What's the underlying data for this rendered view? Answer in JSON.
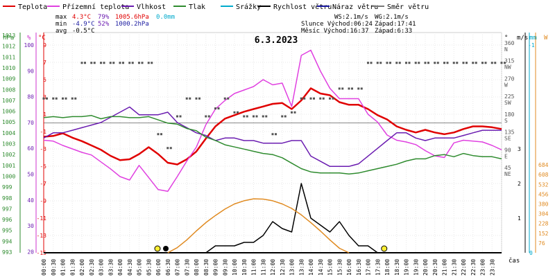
{
  "chart_data": {
    "type": "line",
    "title": "6.3.2023",
    "legend": [
      {
        "label": "Teplota",
        "color": "#e00000"
      },
      {
        "label": "Přízemní teplota",
        "color": "#e040e0"
      },
      {
        "label": "Vlhkost",
        "color": "#6a1bb0"
      },
      {
        "label": "Tlak",
        "color": "#2e8b2e"
      },
      {
        "label": "Srážky",
        "color": "#00aacc"
      },
      {
        "label": "Rychlost větru",
        "color": "#000000"
      },
      {
        "label": "Náraz větru",
        "color": "#1a1aa0"
      },
      {
        "label": "Směr větru",
        "color": "#777777"
      }
    ],
    "stats": {
      "max_label": "max",
      "max_temp": "4.3°C",
      "max_hum": "79%",
      "max_press": "1005.6hPa",
      "max_rain": "0.0mm",
      "min_label": "min",
      "min_temp": "-4.9°C",
      "min_hum": "52%",
      "min_press": "1000.2hPa",
      "avg_label": "avg",
      "avg_temp": "-0.5°C"
    },
    "info": {
      "ws": "WS:2.1m/s",
      "wg": "WG:2.1m/s",
      "sun_rise": "Slunce Východ:06:24",
      "sun_set": "Západ:17:41",
      "moon_rise": "Měsíc  Východ:16:37",
      "moon_set": "Západ:6:33"
    },
    "axes": {
      "hpa_unit": "hPa",
      "hum_unit": "%",
      "temp_unit": "°C",
      "dir_unit": "°",
      "wind_unit": "m/s",
      "rain_unit": "mm",
      "solar_unit": "W",
      "hpa_ticks": [
        "1013",
        "1012",
        "1011",
        "1010",
        "1009",
        "1008",
        "1007",
        "1006",
        "1005",
        "1004",
        "1003",
        "1002",
        "1001",
        "1000",
        "999",
        "998",
        "997",
        "996",
        "995",
        "994",
        "993"
      ],
      "hum_ticks": [
        "100",
        "90",
        "80",
        "70",
        "60",
        "50",
        "40",
        "30",
        "20"
      ],
      "temp_ticks": [
        "9",
        "7",
        "5",
        "3",
        "1",
        "-1",
        "-3",
        "-5",
        "-7",
        "-9",
        "-11",
        "-13",
        "-15"
      ],
      "dir_ticks": [
        {
          "deg": "360",
          "lbl": "N"
        },
        {
          "deg": "315",
          "lbl": "NW"
        },
        {
          "deg": "270",
          "lbl": "W"
        },
        {
          "deg": "225",
          "lbl": "SW"
        },
        {
          "deg": "180",
          "lbl": "S"
        },
        {
          "deg": "135",
          "lbl": "SE"
        },
        {
          "deg": "90",
          "lbl": "E"
        },
        {
          "deg": "45",
          "lbl": "NE"
        }
      ],
      "wind_ticks": [
        "3",
        "2",
        "1"
      ],
      "rain_ticks": [
        "-1",
        "0"
      ],
      "solar_ticks": [
        "684",
        "608",
        "532",
        "456",
        "380",
        "304",
        "228",
        "152",
        "76"
      ],
      "time_ticks": [
        "00:00",
        "00:30",
        "01:00",
        "01:30",
        "02:00",
        "02:30",
        "03:00",
        "03:30",
        "04:00",
        "04:30",
        "05:00",
        "05:30",
        "06:00",
        "06:30",
        "07:00",
        "07:30",
        "08:00",
        "08:30",
        "09:00",
        "09:30",
        "10:00",
        "10:30",
        "11:00",
        "11:30",
        "12:00",
        "12:30",
        "13:00",
        "13:30",
        "14:00",
        "14:30",
        "15:00",
        "15:30",
        "16:00",
        "16:30",
        "17:00",
        "17:30",
        "18:00",
        "18:30",
        "19:00",
        "19:30",
        "20:00",
        "20:30",
        "21:00",
        "21:30",
        "22:00",
        "22:30",
        "23:00",
        "23:30"
      ],
      "time_label": "čas",
      "zero_line_temp": 0
    },
    "x_hours": [
      0,
      0.5,
      1,
      1.5,
      2,
      2.5,
      3,
      3.5,
      4,
      4.5,
      5,
      5.5,
      6,
      6.5,
      7,
      7.5,
      8,
      8.5,
      9,
      9.5,
      10,
      10.5,
      11,
      11.5,
      12,
      12.5,
      13,
      13.5,
      14,
      14.5,
      15,
      15.5,
      16,
      16.5,
      17,
      17.5,
      18,
      18.5,
      19,
      19.5,
      20,
      20.5,
      21,
      21.5,
      22,
      22.5,
      23,
      23.5,
      24
    ],
    "series": [
      {
        "name": "Teplota",
        "axis": "temp",
        "color": "#e00000",
        "values": [
          -1.6,
          -1.5,
          -1.2,
          -1.7,
          -2.1,
          -2.6,
          -3.1,
          -3.8,
          -4.3,
          -4.2,
          -3.6,
          -2.8,
          -3.6,
          -4.6,
          -4.8,
          -4.2,
          -3.3,
          -1.8,
          -0.4,
          0.5,
          0.9,
          1.3,
          1.6,
          1.9,
          2.2,
          2.3,
          1.6,
          2.6,
          4.0,
          3.4,
          3.2,
          2.4,
          2.1,
          2.1,
          1.6,
          0.9,
          0.4,
          -0.4,
          -0.8,
          -1.1,
          -0.8,
          -1.1,
          -1.3,
          -1.1,
          -0.7,
          -0.4,
          -0.4,
          -0.5,
          -0.7
        ]
      },
      {
        "name": "Přízemní teplota",
        "axis": "temp",
        "color": "#e040e0",
        "values": [
          -2.0,
          -2.1,
          -2.6,
          -3.0,
          -3.4,
          -3.7,
          -4.5,
          -5.3,
          -6.2,
          -6.6,
          -4.9,
          -6.3,
          -7.7,
          -7.9,
          -6.2,
          -4.4,
          -2.8,
          -0.2,
          1.6,
          2.6,
          3.4,
          3.8,
          4.2,
          5.0,
          4.4,
          4.6,
          1.9,
          7.8,
          8.4,
          6.0,
          4.0,
          2.8,
          2.8,
          2.8,
          1.0,
          0.1,
          -1.4,
          -2.0,
          -2.2,
          -2.5,
          -3.2,
          -3.8,
          -4.0,
          -2.3,
          -2.0,
          -2.1,
          -2.2,
          -2.6,
          -3.1
        ]
      },
      {
        "name": "Vlhkost",
        "axis": "hum",
        "color": "#6a1bb0",
        "values": [
          64,
          66,
          66,
          67,
          68,
          69,
          70,
          72,
          74,
          76,
          73,
          73,
          73,
          74,
          70,
          68,
          66,
          65,
          63,
          64,
          64,
          63,
          63,
          62,
          62,
          62,
          63,
          63,
          57,
          55,
          53,
          53,
          53,
          54,
          57,
          60,
          63,
          66,
          66,
          64,
          63,
          64,
          64,
          64,
          65,
          66,
          67,
          67,
          67
        ]
      },
      {
        "name": "Tlak",
        "axis": "hpa",
        "color": "#2e8b2e",
        "values": [
          1005.4,
          1005.5,
          1005.4,
          1005.5,
          1005.5,
          1005.6,
          1005.3,
          1005.5,
          1005.5,
          1005.4,
          1005.4,
          1005.5,
          1005.2,
          1004.9,
          1004.8,
          1004.4,
          1004.2,
          1003.6,
          1003.3,
          1002.9,
          1002.7,
          1002.5,
          1002.3,
          1002.1,
          1002.0,
          1001.7,
          1001.2,
          1000.7,
          1000.4,
          1000.3,
          1000.3,
          1000.3,
          1000.2,
          1000.3,
          1000.5,
          1000.7,
          1000.9,
          1001.1,
          1001.4,
          1001.6,
          1001.6,
          1001.9,
          1002.0,
          1001.8,
          1002.1,
          1001.9,
          1001.8,
          1001.8,
          1001.6
        ]
      },
      {
        "name": "Rychlost větru",
        "axis": "wind",
        "color": "#000000",
        "values": [
          0,
          0,
          0,
          0,
          0,
          0,
          0,
          0,
          0,
          0,
          0,
          0,
          0,
          0,
          0,
          0,
          0,
          0,
          0.2,
          0.2,
          0.2,
          0.3,
          0.3,
          0.5,
          0.9,
          0.7,
          0.6,
          2.0,
          1.0,
          0.8,
          0.6,
          0.9,
          0.5,
          0.2,
          0.2,
          0,
          0,
          0,
          0,
          0,
          0,
          0,
          0,
          0,
          0,
          0,
          0,
          0,
          0
        ]
      },
      {
        "name": "Solar",
        "axis": "solar",
        "color": "#e08a20",
        "values": [
          0,
          0,
          0,
          0,
          0,
          0,
          0,
          0,
          0,
          0,
          0,
          0,
          0,
          0,
          40,
          100,
          170,
          235,
          290,
          340,
          380,
          405,
          420,
          418,
          405,
          380,
          345,
          295,
          235,
          170,
          100,
          35,
          0,
          0,
          0,
          0,
          0,
          0,
          0,
          0,
          0,
          0,
          0,
          0,
          0,
          0,
          0,
          0,
          0
        ]
      }
    ],
    "wind_dir_deg": [
      225,
      225,
      225,
      225,
      315,
      315,
      315,
      315,
      315,
      315,
      315,
      315,
      135,
      100,
      180,
      225,
      225,
      180,
      200,
      225,
      190,
      180,
      180,
      180,
      135,
      180,
      190,
      225,
      225,
      225,
      225,
      250,
      250,
      250,
      315,
      315,
      315,
      315,
      315,
      315,
      315,
      315,
      315,
      315,
      315,
      315,
      315,
      315,
      315
    ],
    "sun_markers": {
      "rise": 6.4,
      "set": 17.7
    }
  }
}
